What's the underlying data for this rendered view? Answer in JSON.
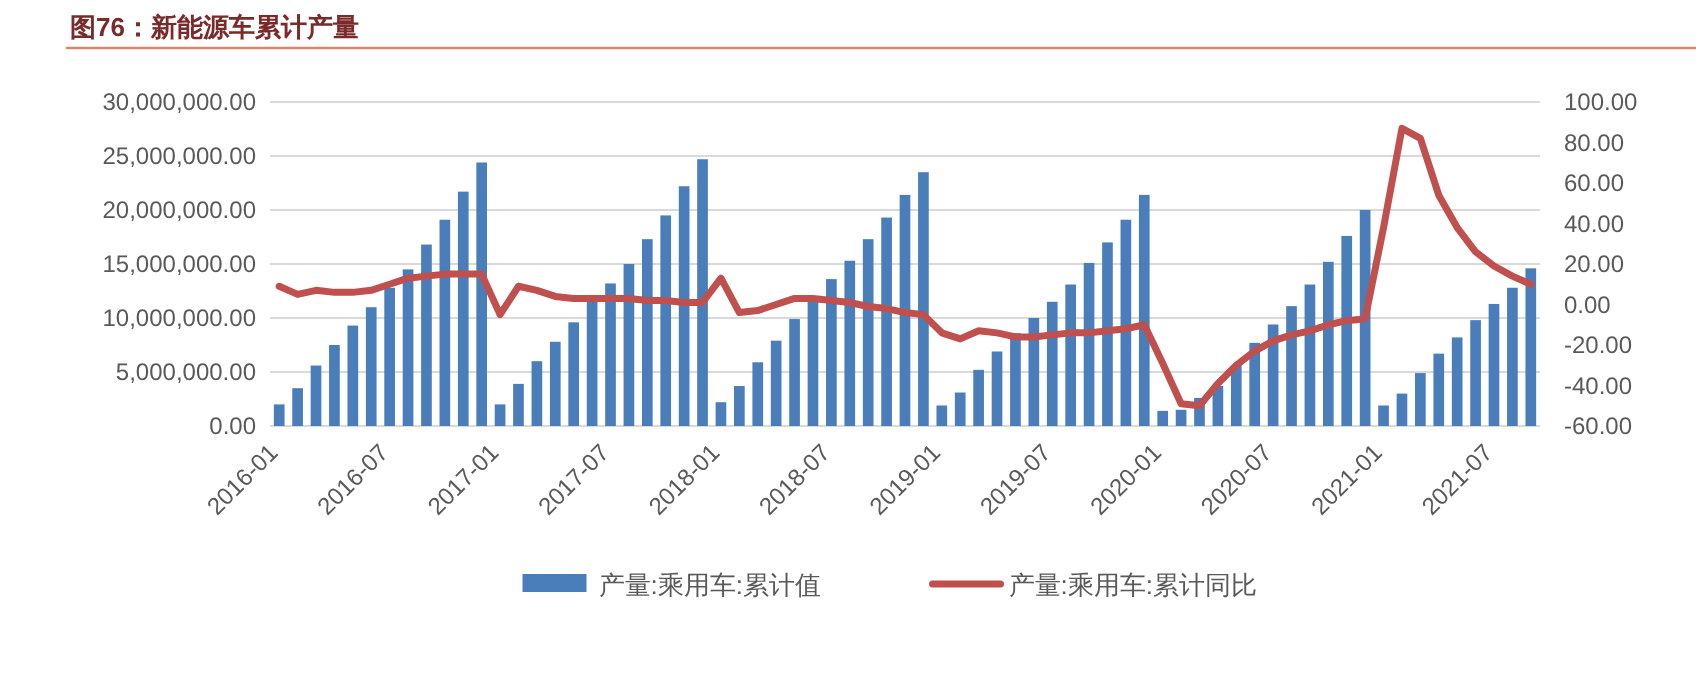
{
  "chart_data": {
    "type": "bar",
    "title": "图76：新能源车累计产量",
    "categories": [
      "2016-01",
      null,
      null,
      null,
      null,
      null,
      "2016-07",
      null,
      null,
      null,
      null,
      null,
      "2017-01",
      null,
      null,
      null,
      null,
      null,
      "2017-07",
      null,
      null,
      null,
      null,
      null,
      "2018-01",
      null,
      null,
      null,
      null,
      null,
      "2018-07",
      null,
      null,
      null,
      null,
      null,
      "2019-01",
      null,
      null,
      null,
      null,
      null,
      "2019-07",
      null,
      null,
      null,
      null,
      null,
      "2020-01",
      null,
      null,
      null,
      null,
      null,
      "2020-07",
      null,
      null,
      null,
      null,
      null,
      "2021-01",
      null,
      null,
      null,
      null,
      null,
      "2021-07",
      null,
      null
    ],
    "series": [
      {
        "name": "产量:乘用车:累计值",
        "color": "#4a7ebb",
        "values": [
          2000000,
          3500000,
          5600000,
          7500000,
          9300000,
          11000000,
          12800000,
          14500000,
          16800000,
          19100000,
          21700000,
          24400000,
          2000000,
          3900000,
          6000000,
          7800000,
          9600000,
          11500000,
          13200000,
          15000000,
          17300000,
          19500000,
          22200000,
          24700000,
          2200000,
          3700000,
          5900000,
          7900000,
          9900000,
          11700000,
          13600000,
          15300000,
          17300000,
          19300000,
          21400000,
          23500000,
          1900000,
          3100000,
          5200000,
          6900000,
          8600000,
          10000000,
          11500000,
          13100000,
          15100000,
          17000000,
          19100000,
          21400000,
          1400000,
          1500000,
          2600000,
          3700000,
          5600000,
          7700000,
          9400000,
          11100000,
          13100000,
          15200000,
          17600000,
          20000000,
          1900000,
          3000000,
          4900000,
          6700000,
          8200000,
          9800000,
          11300000,
          12800000,
          14600000
        ]
      },
      {
        "name": "产量:乘用车:累计同比",
        "type": "line",
        "axis": "y2",
        "color": "#c0504d",
        "values": [
          9,
          5,
          7,
          6,
          6,
          7,
          10,
          13,
          14,
          15,
          15,
          15,
          -5,
          9,
          7,
          4,
          3,
          3,
          3,
          3,
          2,
          2,
          1,
          1,
          13,
          -4,
          -3,
          0,
          3,
          3,
          2,
          1,
          -1,
          -2,
          -4,
          -5,
          -14,
          -17,
          -13,
          -14,
          -16,
          -16,
          -15,
          -14,
          -14,
          -13,
          -12,
          -10,
          -29,
          -49,
          -50,
          -39,
          -30,
          -23,
          -18,
          -15,
          -13,
          -10,
          -8,
          -7,
          38,
          87,
          82,
          54,
          38,
          26,
          19,
          14,
          10
        ]
      }
    ],
    "ylim": [
      0,
      30000000
    ],
    "yticks": [
      {
        "value": 0,
        "label": "0.00"
      },
      {
        "value": 5000000,
        "label": "5,000,000.00"
      },
      {
        "value": 10000000,
        "label": "10,000,000.00"
      },
      {
        "value": 15000000,
        "label": "15,000,000.00"
      },
      {
        "value": 20000000,
        "label": "20,000,000.00"
      },
      {
        "value": 25000000,
        "label": "25,000,000.00"
      },
      {
        "value": 30000000,
        "label": "30,000,000.00"
      }
    ],
    "y2lim": [
      -60,
      100
    ],
    "y2ticks": [
      {
        "value": -60,
        "label": "-60.00"
      },
      {
        "value": -40,
        "label": "-40.00"
      },
      {
        "value": -20,
        "label": "-20.00"
      },
      {
        "value": 0,
        "label": "0.00"
      },
      {
        "value": 20,
        "label": "20.00"
      },
      {
        "value": 40,
        "label": "40.00"
      },
      {
        "value": 60,
        "label": "60.00"
      },
      {
        "value": 80,
        "label": "80.00"
      },
      {
        "value": 100,
        "label": "100.00"
      }
    ],
    "grid": "y",
    "legend": "bottom"
  }
}
